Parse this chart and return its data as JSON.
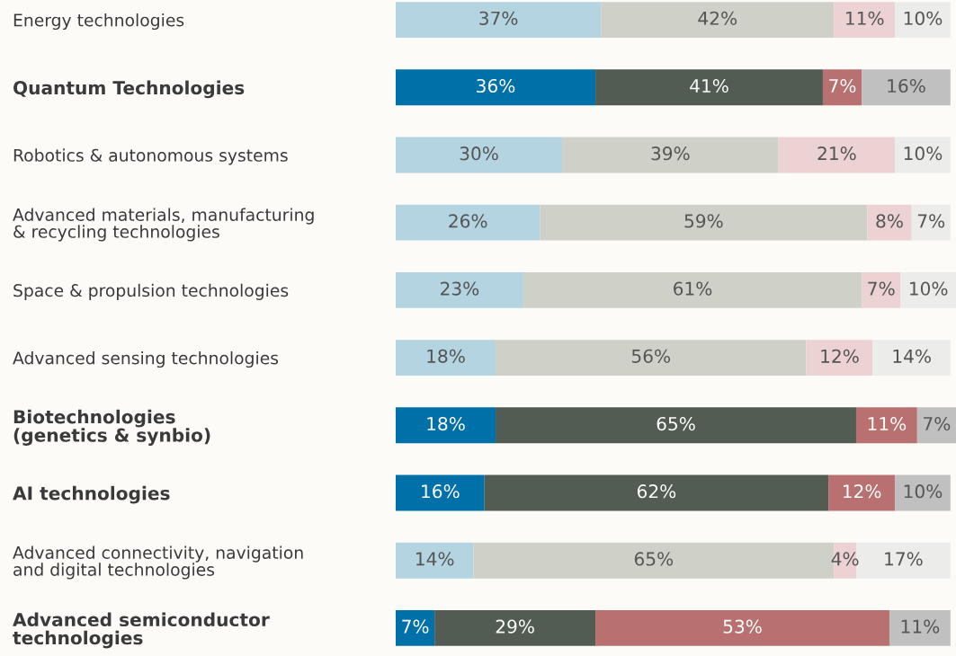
{
  "chart_data": {
    "type": "bar",
    "orientation": "horizontal",
    "stacked": true,
    "tick_labels": "y",
    "grid": false,
    "legend": false,
    "categories": [
      "Energy technologies",
      "Quantum Technologies",
      "Robotics & autonomous systems",
      "Advanced materials, manufacturing\n& recycling technologies",
      "Space & propulsion technologies",
      "Advanced sensing technologies",
      "Biotechnologies\n(genetics & synbio)",
      "AI technologies",
      "Advanced connectivity, navigation\nand digital technologies",
      "Advanced semiconductor\ntechnologies"
    ],
    "series": [
      {
        "values": [
          37,
          36,
          30,
          26,
          23,
          18,
          18,
          16,
          14,
          7
        ],
        "value_labels": [
          "37%",
          "36%",
          "30%",
          "26%",
          "23%",
          "18%",
          "18%",
          "16%",
          "14%",
          "7%"
        ],
        "colors": [
          "#b3d4e0",
          "#0070a8",
          "#b3d4e0",
          "#b3d4e0",
          "#b3d4e0",
          "#b3d4e0",
          "#0070a8",
          "#0070a8",
          "#b3d4e0",
          "#0070a8"
        ]
      },
      {
        "values": [
          42,
          41,
          39,
          59,
          61,
          56,
          65,
          62,
          65,
          29
        ],
        "value_labels": [
          "42%",
          "41%",
          "39%",
          "59%",
          "61%",
          "56%",
          "65%",
          "62%",
          "65%",
          "29%"
        ],
        "colors": [
          "#cfd0c8",
          "#525c52",
          "#cfd0c8",
          "#cfd0c8",
          "#cfd0c8",
          "#cfd0c8",
          "#525c52",
          "#525c52",
          "#cfd0c8",
          "#525c52"
        ]
      },
      {
        "values": [
          11,
          7,
          21,
          8,
          7,
          12,
          11,
          12,
          4,
          53
        ],
        "value_labels": [
          "11%",
          "7%",
          "21%",
          "8%",
          "7%",
          "12%",
          "11%",
          "12%",
          "4%",
          "53%"
        ],
        "colors": [
          "#ecd2d2",
          "#b87070",
          "#ecd2d2",
          "#ecd2d2",
          "#ecd2d2",
          "#ecd2d2",
          "#b87070",
          "#b87070",
          "#ecd2d2",
          "#b87070"
        ]
      },
      {
        "values": [
          10,
          16,
          10,
          7,
          10,
          14,
          7,
          10,
          17,
          11
        ],
        "value_labels": [
          "10%",
          "16%",
          "10%",
          "7%",
          "10%",
          "14%",
          "7%",
          "10%",
          "17%",
          "11%"
        ],
        "colors": [
          "#ececea",
          "#c0c0c0",
          "#ececea",
          "#ececea",
          "#ececea",
          "#ececea",
          "#c0c0c0",
          "#c0c0c0",
          "#ececea",
          "#c0c0c0"
        ]
      }
    ]
  }
}
